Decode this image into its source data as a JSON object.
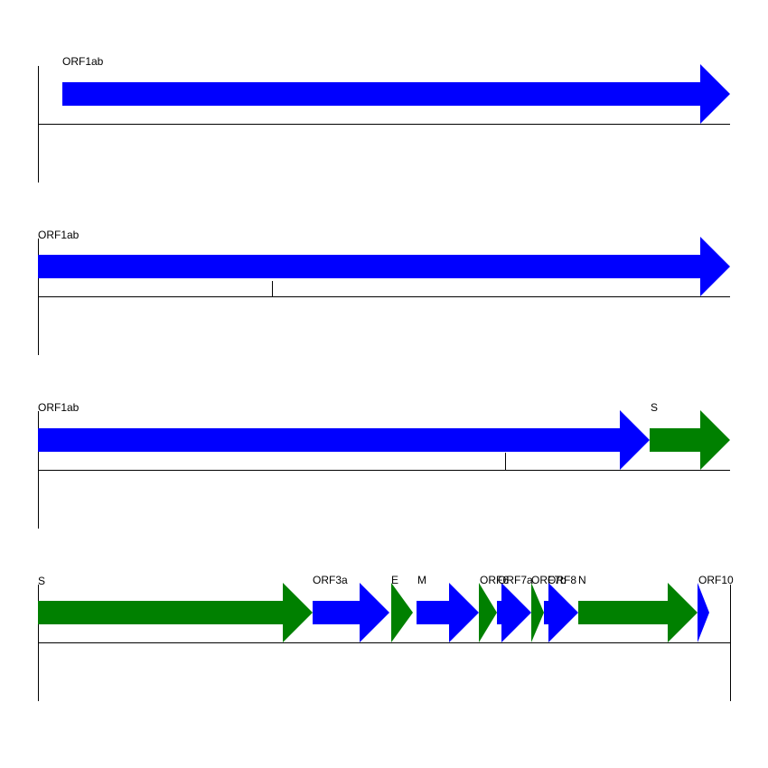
{
  "colors": {
    "blue": "#0000ff",
    "green": "#008000",
    "axis": "#000000"
  },
  "rows": [
    {
      "genes": [
        {
          "label": "ORF1ab",
          "color": "blue"
        }
      ]
    },
    {
      "genes": [
        {
          "label": "ORF1ab",
          "color": "blue"
        }
      ]
    },
    {
      "genes": [
        {
          "label": "ORF1ab",
          "color": "blue"
        },
        {
          "label": "S",
          "color": "green"
        }
      ]
    },
    {
      "genes": [
        {
          "label": "S",
          "color": "green"
        },
        {
          "label": "ORF3a",
          "color": "blue"
        },
        {
          "label": "E",
          "color": "green"
        },
        {
          "label": "M",
          "color": "blue"
        },
        {
          "label": "ORF6",
          "color": "green"
        },
        {
          "label": "ORF7a",
          "color": "blue"
        },
        {
          "label": "ORF7b",
          "color": "green"
        },
        {
          "label": "ORF8",
          "color": "blue"
        },
        {
          "label": "N",
          "color": "green"
        },
        {
          "label": "ORF10",
          "color": "blue"
        }
      ]
    }
  ]
}
